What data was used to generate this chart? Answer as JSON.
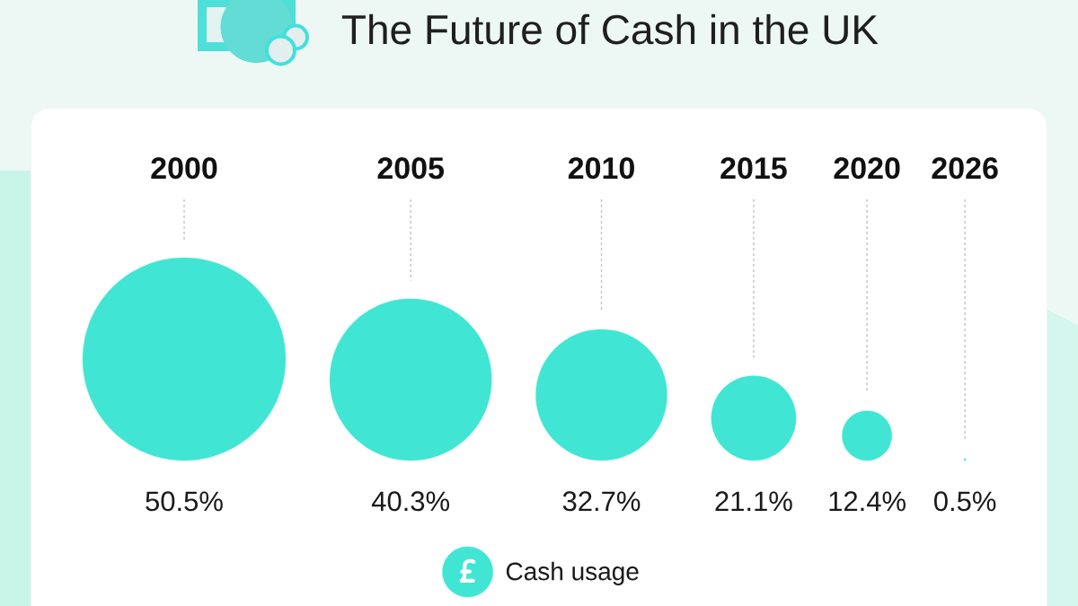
{
  "chart_data": {
    "type": "other",
    "title": "The Future of Cash in the UK",
    "categories": [
      "2000",
      "2005",
      "2010",
      "2015",
      "2020",
      "2026"
    ],
    "series": [
      {
        "name": "Cash usage",
        "color": "#40e6d3",
        "values": [
          50.5,
          40.3,
          32.7,
          21.1,
          12.4,
          0.5
        ],
        "value_labels": [
          "50.5%",
          "40.3%",
          "32.7%",
          "21.1%",
          "12.4%",
          "0.5%"
        ]
      }
    ],
    "legend": "bottom"
  }
}
